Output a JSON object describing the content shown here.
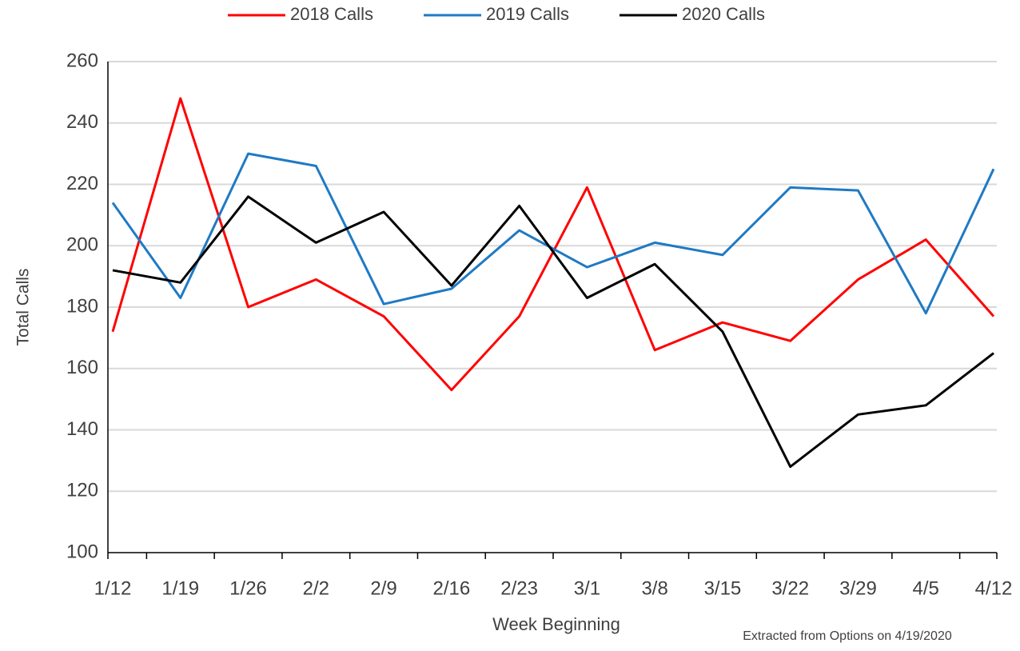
{
  "chart_data": {
    "type": "line",
    "categories": [
      "1/12",
      "1/19",
      "1/26",
      "2/2",
      "2/9",
      "2/16",
      "2/23",
      "3/1",
      "3/8",
      "3/15",
      "3/22",
      "3/29",
      "4/5",
      "4/12"
    ],
    "series": [
      {
        "name": "2018 Calls",
        "color": "#ff0000",
        "values": [
          172,
          248,
          180,
          189,
          177,
          153,
          177,
          219,
          166,
          175,
          169,
          189,
          202,
          177
        ]
      },
      {
        "name": "2019 Calls",
        "color": "#1f7ac4",
        "values": [
          214,
          183,
          230,
          226,
          181,
          186,
          205,
          193,
          201,
          197,
          219,
          218,
          178,
          225
        ]
      },
      {
        "name": "2020 Calls",
        "color": "#000000",
        "values": [
          192,
          188,
          216,
          201,
          211,
          187,
          213,
          183,
          194,
          172,
          128,
          145,
          148,
          165
        ]
      }
    ],
    "ylim": [
      100,
      260
    ],
    "yticks": [
      100,
      120,
      140,
      160,
      180,
      200,
      220,
      240,
      260
    ],
    "grid": true,
    "xlabel": "Week Beginning",
    "ylabel": "Total Calls",
    "annotation": "Extracted from Options on 4/19/2020",
    "legend": "top"
  }
}
